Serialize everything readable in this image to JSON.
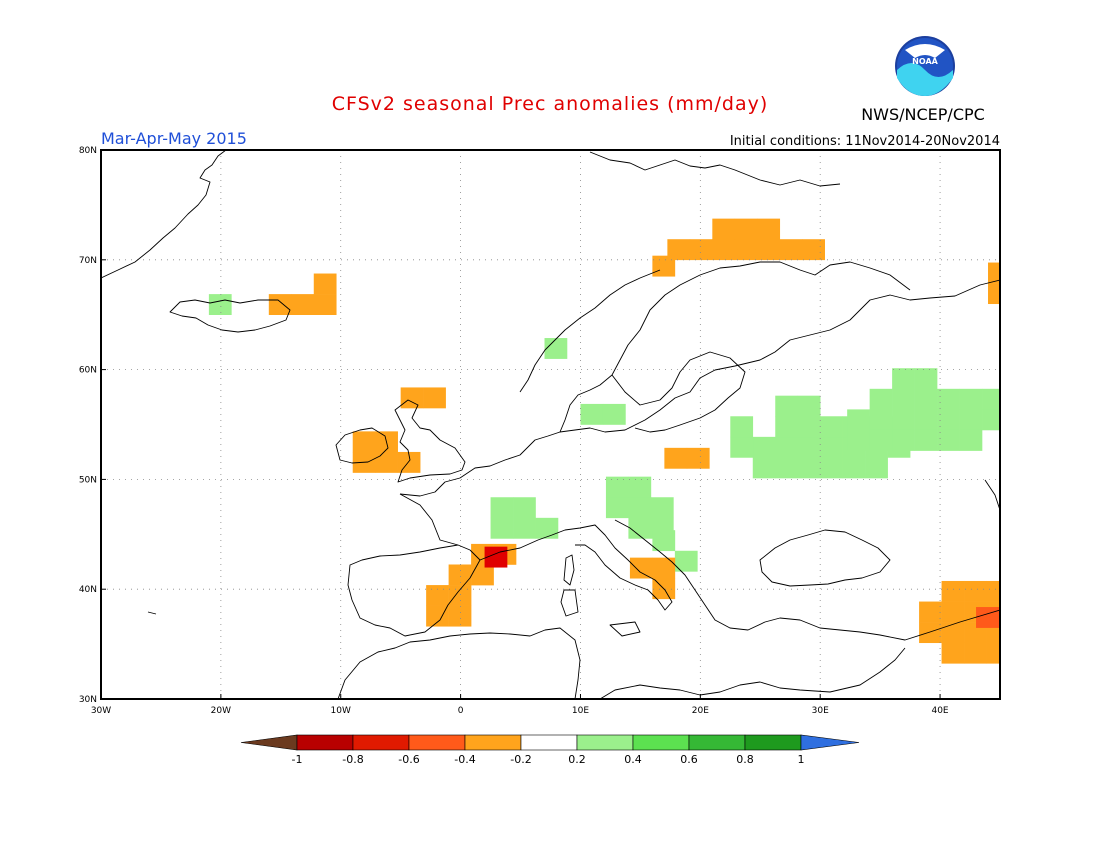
{
  "header": {
    "title": "CFSv2 seasonal Prec anomalies (mm/day)",
    "season": "Mar-Apr-May 2015",
    "init": "Initial conditions: 11Nov2014-20Nov2014",
    "agency": "NWS/NCEP/CPC",
    "logo_text": "NOAA"
  },
  "map": {
    "lon_range": [
      -30,
      45
    ],
    "lat_range": [
      30,
      80
    ],
    "lat_labels": [
      "80N",
      "70N",
      "60N",
      "50N",
      "40N",
      "30N"
    ],
    "lon_labels": [
      "30W",
      "20W",
      "10W",
      "0",
      "10E",
      "20E",
      "30E",
      "40E"
    ],
    "gridlines": "dotted every 10 degrees"
  },
  "legend": {
    "ticks": [
      "-1",
      "-0.8",
      "-0.6",
      "-0.4",
      "-0.2",
      "0.2",
      "0.4",
      "0.6",
      "0.8",
      "1"
    ],
    "colors": {
      "lt_m1": "#6b3a1f",
      "m1_m08": "#b80000",
      "m08_m06": "#e00000",
      "m06_m04": "#ff5a1a",
      "m04_m02": "#ffa41c",
      "m02_02": "#ffffff",
      "p02_p04": "#9bf08c",
      "p04_p06": "#5ce150",
      "p06_p08": "#35b835",
      "p08_p1": "#1e9a1e",
      "gt_p1": "#2f6fe0"
    }
  },
  "colors": {
    "title": "#e00000",
    "season": "#1f4fd8",
    "frame": "#000000",
    "grid": "#888888",
    "coast": "#000000"
  },
  "anomaly_regions": [
    {
      "name": "iceland-wet",
      "cls": "p02_p04",
      "lon": -21,
      "lat": 65
    },
    {
      "name": "iceland-dry",
      "cls": "m04_m02",
      "lon": -16,
      "lat": 65
    },
    {
      "name": "ireland-dry",
      "cls": "m04_m02",
      "lon": -9,
      "lat": 52.5
    },
    {
      "name": "scotland-dry",
      "cls": "m04_m02",
      "lon": -5,
      "lat": 56.5
    },
    {
      "name": "norway-north-dry",
      "cls": "m04_m02",
      "lon": 21,
      "lat": 70
    },
    {
      "name": "finland-dry",
      "cls": "m04_m02",
      "lon": 16,
      "lat": 68.5
    },
    {
      "name": "russia-north-dry",
      "cls": "m04_m02",
      "lon": 44,
      "lat": 66
    },
    {
      "name": "norway-wet",
      "cls": "p02_p04",
      "lon": 7,
      "lat": 61
    },
    {
      "name": "belarus-wet",
      "cls": "p02_p04",
      "lon": 30,
      "lat": 52
    },
    {
      "name": "russia-wet",
      "cls": "p02_p04",
      "lon": 36,
      "lat": 54.5
    },
    {
      "name": "poland-dry",
      "cls": "m04_m02",
      "lon": 17,
      "lat": 51
    },
    {
      "name": "denmark-wet",
      "cls": "p02_p04",
      "lon": 10,
      "lat": 55
    },
    {
      "name": "france-wet",
      "cls": "p02_p04",
      "lon": 2.5,
      "lat": 46.5
    },
    {
      "name": "alps-wet",
      "cls": "p02_p04",
      "lon": 14,
      "lat": 46.5
    },
    {
      "name": "balkan-wet",
      "cls": "p02_p04",
      "lon": 16,
      "lat": 43.5
    },
    {
      "name": "spain-dry",
      "cls": "m04_m02",
      "lon": -1,
      "lat": 38.5
    },
    {
      "name": "spain-strong-dry",
      "cls": "m08_m06",
      "lon": 2,
      "lat": 42
    },
    {
      "name": "italy-dry",
      "cls": "m04_m02",
      "lon": 16,
      "lat": 41
    },
    {
      "name": "turkey-east-dry",
      "cls": "m04_m02",
      "lon": 42,
      "lat": 37
    },
    {
      "name": "turkey-east-strong-dry",
      "cls": "m06_m04",
      "lon": 43,
      "lat": 36.5
    }
  ]
}
